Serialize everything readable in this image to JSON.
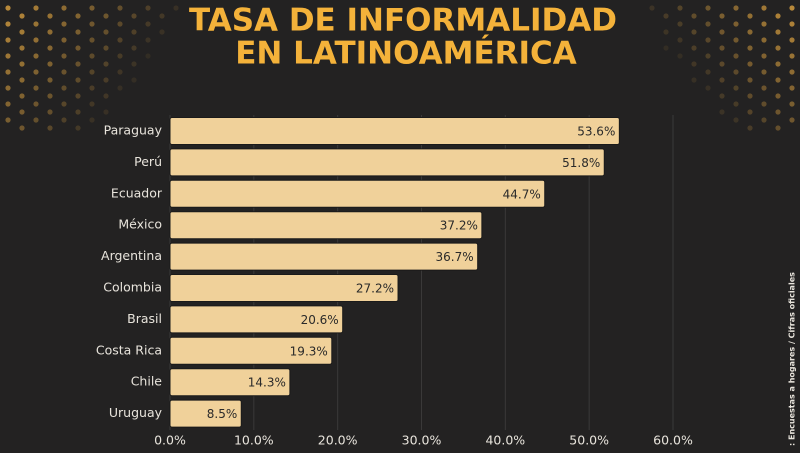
{
  "chart_data": {
    "type": "bar",
    "orientation": "horizontal",
    "title": [
      "TASA DE INFORMALIDAD",
      "EN LATINOAMÉRICA"
    ],
    "source": ": Encuestas a hogares / Cifras oficiales",
    "categories": [
      "Paraguay",
      "Perú",
      "Ecuador",
      "México",
      "Argentina",
      "Colombia",
      "Brasil",
      "Costa Rica",
      "Chile",
      "Uruguay"
    ],
    "values": [
      53.6,
      51.8,
      44.7,
      37.2,
      36.7,
      27.2,
      20.6,
      19.3,
      14.3,
      8.5
    ],
    "value_labels": [
      "53.6%",
      "51.8%",
      "44.7%",
      "37.2%",
      "36.7%",
      "27.2%",
      "20.6%",
      "19.3%",
      "14.3%",
      "8.5%"
    ],
    "color": "#f0d19a",
    "xlim": [
      0,
      60
    ],
    "xticks": [
      {
        "value": 0,
        "label": "0.0%"
      },
      {
        "value": 10,
        "label": "10.0%"
      },
      {
        "value": 20,
        "label": "20.0%"
      },
      {
        "value": 30,
        "label": "30.0%"
      },
      {
        "value": 40,
        "label": "40.0%"
      },
      {
        "value": 50,
        "label": "50.0%"
      },
      {
        "value": 60,
        "label": "60.0%"
      }
    ],
    "grid": true
  }
}
